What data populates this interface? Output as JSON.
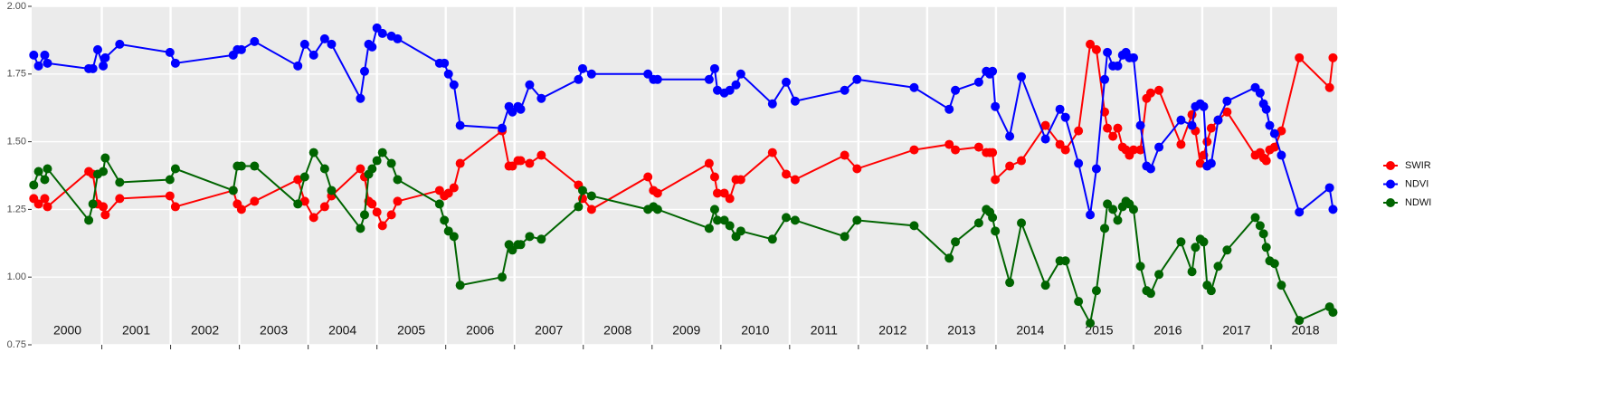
{
  "chart_data": {
    "type": "line",
    "x": [
      2000.01,
      2000.08,
      2000.17,
      2000.21,
      2000.81,
      2000.87,
      2000.94,
      2001.02,
      2001.05,
      2001.26,
      2001.99,
      2002.07,
      2002.91,
      2002.97,
      2003.03,
      2003.22,
      2003.85,
      2003.95,
      2004.08,
      2004.24,
      2004.34,
      2004.76,
      2004.82,
      2004.88,
      2004.93,
      2005.0,
      2005.08,
      2005.21,
      2005.3,
      2005.91,
      2005.98,
      2006.04,
      2006.12,
      2006.21,
      2006.82,
      2006.92,
      2006.97,
      2007.05,
      2007.09,
      2007.22,
      2007.39,
      2007.93,
      2007.99,
      2008.12,
      2008.94,
      2009.02,
      2009.08,
      2009.83,
      2009.91,
      2009.95,
      2010.05,
      2010.13,
      2010.22,
      2010.29,
      2010.75,
      2010.95,
      2011.08,
      2011.8,
      2011.98,
      2012.81,
      2013.32,
      2013.41,
      2013.75,
      2013.86,
      2013.91,
      2013.95,
      2013.99,
      2014.2,
      2014.37,
      2014.72,
      2014.93,
      2015.01,
      2015.2,
      2015.37,
      2015.46,
      2015.58,
      2015.62,
      2015.7,
      2015.77,
      2015.84,
      2015.89,
      2015.94,
      2016.0,
      2016.1,
      2016.19,
      2016.25,
      2016.37,
      2016.69,
      2016.85,
      2016.9,
      2016.97,
      2017.02,
      2017.07,
      2017.13,
      2017.23,
      2017.36,
      2017.77,
      2017.84,
      2017.89,
      2017.93,
      2017.98,
      2018.05,
      2018.15,
      2018.41,
      2018.85,
      2018.9
    ],
    "series": [
      {
        "name": "SWIR",
        "color": "#ff0000",
        "values": [
          1.29,
          1.27,
          1.29,
          1.26,
          1.39,
          1.38,
          1.27,
          1.26,
          1.23,
          1.29,
          1.3,
          1.26,
          1.32,
          1.27,
          1.25,
          1.28,
          1.36,
          1.28,
          1.22,
          1.26,
          1.3,
          1.4,
          1.37,
          1.28,
          1.27,
          1.24,
          1.19,
          1.23,
          1.28,
          1.32,
          1.3,
          1.31,
          1.33,
          1.42,
          1.54,
          1.41,
          1.41,
          1.43,
          1.43,
          1.42,
          1.45,
          1.34,
          1.29,
          1.25,
          1.37,
          1.32,
          1.31,
          1.42,
          1.37,
          1.31,
          1.31,
          1.29,
          1.36,
          1.36,
          1.46,
          1.38,
          1.36,
          1.45,
          1.4,
          1.47,
          1.49,
          1.47,
          1.48,
          1.46,
          1.46,
          1.46,
          1.36,
          1.41,
          1.43,
          1.56,
          1.49,
          1.47,
          1.54,
          1.86,
          1.84,
          1.61,
          1.55,
          1.52,
          1.55,
          1.48,
          1.47,
          1.45,
          1.47,
          1.47,
          1.66,
          1.68,
          1.69,
          1.49,
          1.6,
          1.54,
          1.42,
          1.45,
          1.5,
          1.55,
          1.58,
          1.61,
          1.45,
          1.46,
          1.44,
          1.43,
          1.47,
          1.48,
          1.54,
          1.81,
          1.7,
          1.81
        ]
      },
      {
        "name": "NDVI",
        "color": "#0000ff",
        "values": [
          1.82,
          1.78,
          1.82,
          1.79,
          1.77,
          1.77,
          1.84,
          1.78,
          1.81,
          1.86,
          1.83,
          1.79,
          1.82,
          1.84,
          1.84,
          1.87,
          1.78,
          1.86,
          1.82,
          1.88,
          1.86,
          1.66,
          1.76,
          1.86,
          1.85,
          1.92,
          1.9,
          1.89,
          1.88,
          1.79,
          1.79,
          1.75,
          1.71,
          1.56,
          1.55,
          1.63,
          1.61,
          1.63,
          1.62,
          1.71,
          1.66,
          1.73,
          1.77,
          1.75,
          1.75,
          1.73,
          1.73,
          1.73,
          1.77,
          1.69,
          1.68,
          1.69,
          1.71,
          1.75,
          1.64,
          1.72,
          1.65,
          1.69,
          1.73,
          1.7,
          1.62,
          1.69,
          1.72,
          1.76,
          1.75,
          1.76,
          1.63,
          1.52,
          1.74,
          1.51,
          1.62,
          1.59,
          1.42,
          1.23,
          1.4,
          1.73,
          1.83,
          1.78,
          1.78,
          1.82,
          1.83,
          1.81,
          1.81,
          1.56,
          1.41,
          1.4,
          1.48,
          1.58,
          1.56,
          1.63,
          1.64,
          1.63,
          1.41,
          1.42,
          1.58,
          1.65,
          1.7,
          1.68,
          1.64,
          1.62,
          1.56,
          1.53,
          1.45,
          1.24,
          1.33,
          1.25
        ]
      },
      {
        "name": "NDWI",
        "color": "#006400",
        "values": [
          1.34,
          1.39,
          1.36,
          1.4,
          1.21,
          1.27,
          1.38,
          1.39,
          1.44,
          1.35,
          1.36,
          1.4,
          1.32,
          1.41,
          1.41,
          1.41,
          1.27,
          1.37,
          1.46,
          1.4,
          1.32,
          1.18,
          1.23,
          1.38,
          1.4,
          1.43,
          1.46,
          1.42,
          1.36,
          1.27,
          1.21,
          1.17,
          1.15,
          0.97,
          1.0,
          1.12,
          1.1,
          1.12,
          1.12,
          1.15,
          1.14,
          1.26,
          1.32,
          1.3,
          1.25,
          1.26,
          1.25,
          1.18,
          1.25,
          1.21,
          1.21,
          1.19,
          1.15,
          1.17,
          1.14,
          1.22,
          1.21,
          1.15,
          1.21,
          1.19,
          1.07,
          1.13,
          1.2,
          1.25,
          1.24,
          1.22,
          1.17,
          0.98,
          1.2,
          0.97,
          1.06,
          1.06,
          0.91,
          0.83,
          0.95,
          1.18,
          1.27,
          1.25,
          1.21,
          1.26,
          1.28,
          1.27,
          1.25,
          1.04,
          0.95,
          0.94,
          1.01,
          1.13,
          1.02,
          1.11,
          1.14,
          1.13,
          0.97,
          0.95,
          1.04,
          1.1,
          1.22,
          1.19,
          1.16,
          1.11,
          1.06,
          1.05,
          0.97,
          0.84,
          0.89,
          0.87
        ]
      }
    ],
    "xlim": [
      1999.98,
      2018.96
    ],
    "ylim": [
      0.75,
      2.0
    ],
    "yticks": [
      {
        "value": 0.75,
        "label": "0.75"
      },
      {
        "value": 1.0,
        "label": "1.00"
      },
      {
        "value": 1.25,
        "label": "1.25"
      },
      {
        "value": 1.5,
        "label": "1.50"
      },
      {
        "value": 1.75,
        "label": "1.75"
      },
      {
        "value": 2.0,
        "label": "2.00"
      }
    ],
    "xgrid": [
      2001,
      2002,
      2003,
      2004,
      2005,
      2006,
      2007,
      2008,
      2009,
      2010,
      2011,
      2012,
      2013,
      2014,
      2015,
      2016,
      2017,
      2018
    ],
    "xticks": [
      {
        "value": 2000.5,
        "label": "2000"
      },
      {
        "value": 2001.5,
        "label": "2001"
      },
      {
        "value": 2002.5,
        "label": "2002"
      },
      {
        "value": 2003.5,
        "label": "2003"
      },
      {
        "value": 2004.5,
        "label": "2004"
      },
      {
        "value": 2005.5,
        "label": "2005"
      },
      {
        "value": 2006.5,
        "label": "2006"
      },
      {
        "value": 2007.5,
        "label": "2007"
      },
      {
        "value": 2008.5,
        "label": "2008"
      },
      {
        "value": 2009.5,
        "label": "2009"
      },
      {
        "value": 2010.5,
        "label": "2010"
      },
      {
        "value": 2011.5,
        "label": "2011"
      },
      {
        "value": 2012.5,
        "label": "2012"
      },
      {
        "value": 2013.5,
        "label": "2013"
      },
      {
        "value": 2014.5,
        "label": "2014"
      },
      {
        "value": 2015.5,
        "label": "2015"
      },
      {
        "value": 2016.5,
        "label": "2016"
      },
      {
        "value": 2017.5,
        "label": "2017"
      },
      {
        "value": 2018.5,
        "label": "2018"
      }
    ],
    "grid": true,
    "legend": "right"
  }
}
